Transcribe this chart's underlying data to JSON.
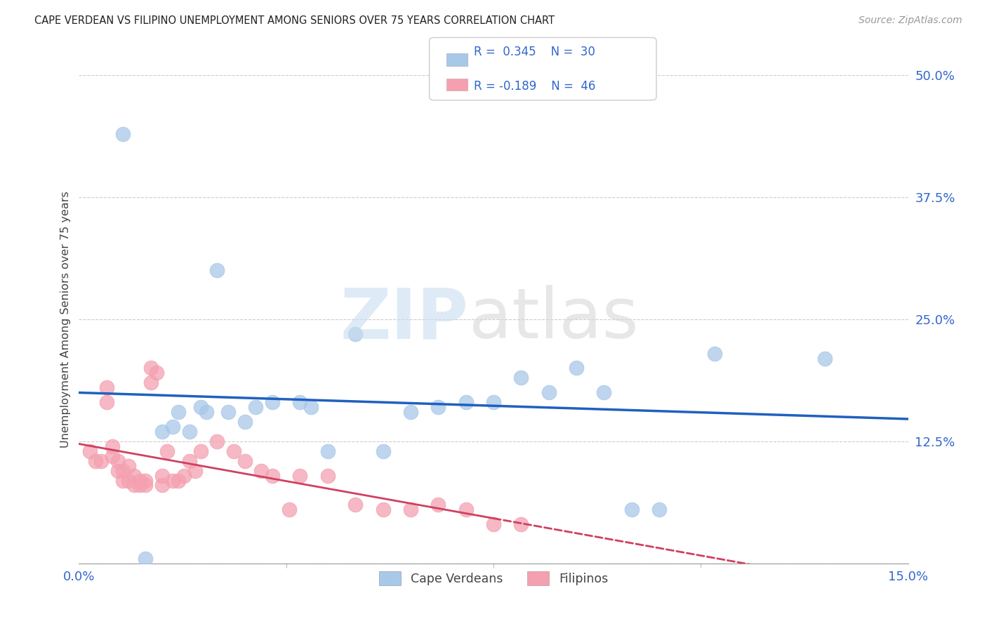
{
  "title": "CAPE VERDEAN VS FILIPINO UNEMPLOYMENT AMONG SENIORS OVER 75 YEARS CORRELATION CHART",
  "source": "Source: ZipAtlas.com",
  "ylabel": "Unemployment Among Seniors over 75 years",
  "xlim": [
    0.0,
    0.15
  ],
  "ylim": [
    0.0,
    0.5
  ],
  "yticks": [
    0.0,
    0.125,
    0.25,
    0.375,
    0.5
  ],
  "ytick_labels": [
    "",
    "12.5%",
    "25.0%",
    "37.5%",
    "50.0%"
  ],
  "blue_color": "#a8c8e8",
  "pink_color": "#f4a0b0",
  "blue_line_color": "#2060c0",
  "pink_line_color": "#d04060",
  "cape_verdean_x": [
    0.008,
    0.012,
    0.015,
    0.017,
    0.018,
    0.02,
    0.022,
    0.023,
    0.025,
    0.027,
    0.03,
    0.032,
    0.035,
    0.04,
    0.042,
    0.045,
    0.05,
    0.055,
    0.06,
    0.065,
    0.07,
    0.075,
    0.08,
    0.085,
    0.09,
    0.095,
    0.1,
    0.105,
    0.115,
    0.135
  ],
  "cape_verdean_y": [
    0.44,
    0.005,
    0.135,
    0.14,
    0.155,
    0.135,
    0.16,
    0.155,
    0.3,
    0.155,
    0.145,
    0.16,
    0.165,
    0.165,
    0.16,
    0.115,
    0.235,
    0.115,
    0.155,
    0.16,
    0.165,
    0.165,
    0.19,
    0.175,
    0.2,
    0.175,
    0.055,
    0.055,
    0.215,
    0.21
  ],
  "filipino_x": [
    0.002,
    0.003,
    0.004,
    0.005,
    0.005,
    0.006,
    0.006,
    0.007,
    0.007,
    0.008,
    0.008,
    0.009,
    0.009,
    0.01,
    0.01,
    0.011,
    0.011,
    0.012,
    0.012,
    0.013,
    0.013,
    0.014,
    0.015,
    0.015,
    0.016,
    0.017,
    0.018,
    0.019,
    0.02,
    0.021,
    0.022,
    0.025,
    0.028,
    0.03,
    0.033,
    0.035,
    0.038,
    0.04,
    0.045,
    0.05,
    0.055,
    0.06,
    0.065,
    0.07,
    0.075,
    0.08
  ],
  "filipino_y": [
    0.115,
    0.105,
    0.105,
    0.165,
    0.18,
    0.12,
    0.11,
    0.105,
    0.095,
    0.085,
    0.095,
    0.1,
    0.085,
    0.09,
    0.08,
    0.08,
    0.085,
    0.085,
    0.08,
    0.2,
    0.185,
    0.195,
    0.09,
    0.08,
    0.115,
    0.085,
    0.085,
    0.09,
    0.105,
    0.095,
    0.115,
    0.125,
    0.115,
    0.105,
    0.095,
    0.09,
    0.055,
    0.09,
    0.09,
    0.06,
    0.055,
    0.055,
    0.06,
    0.055,
    0.04,
    0.04
  ]
}
